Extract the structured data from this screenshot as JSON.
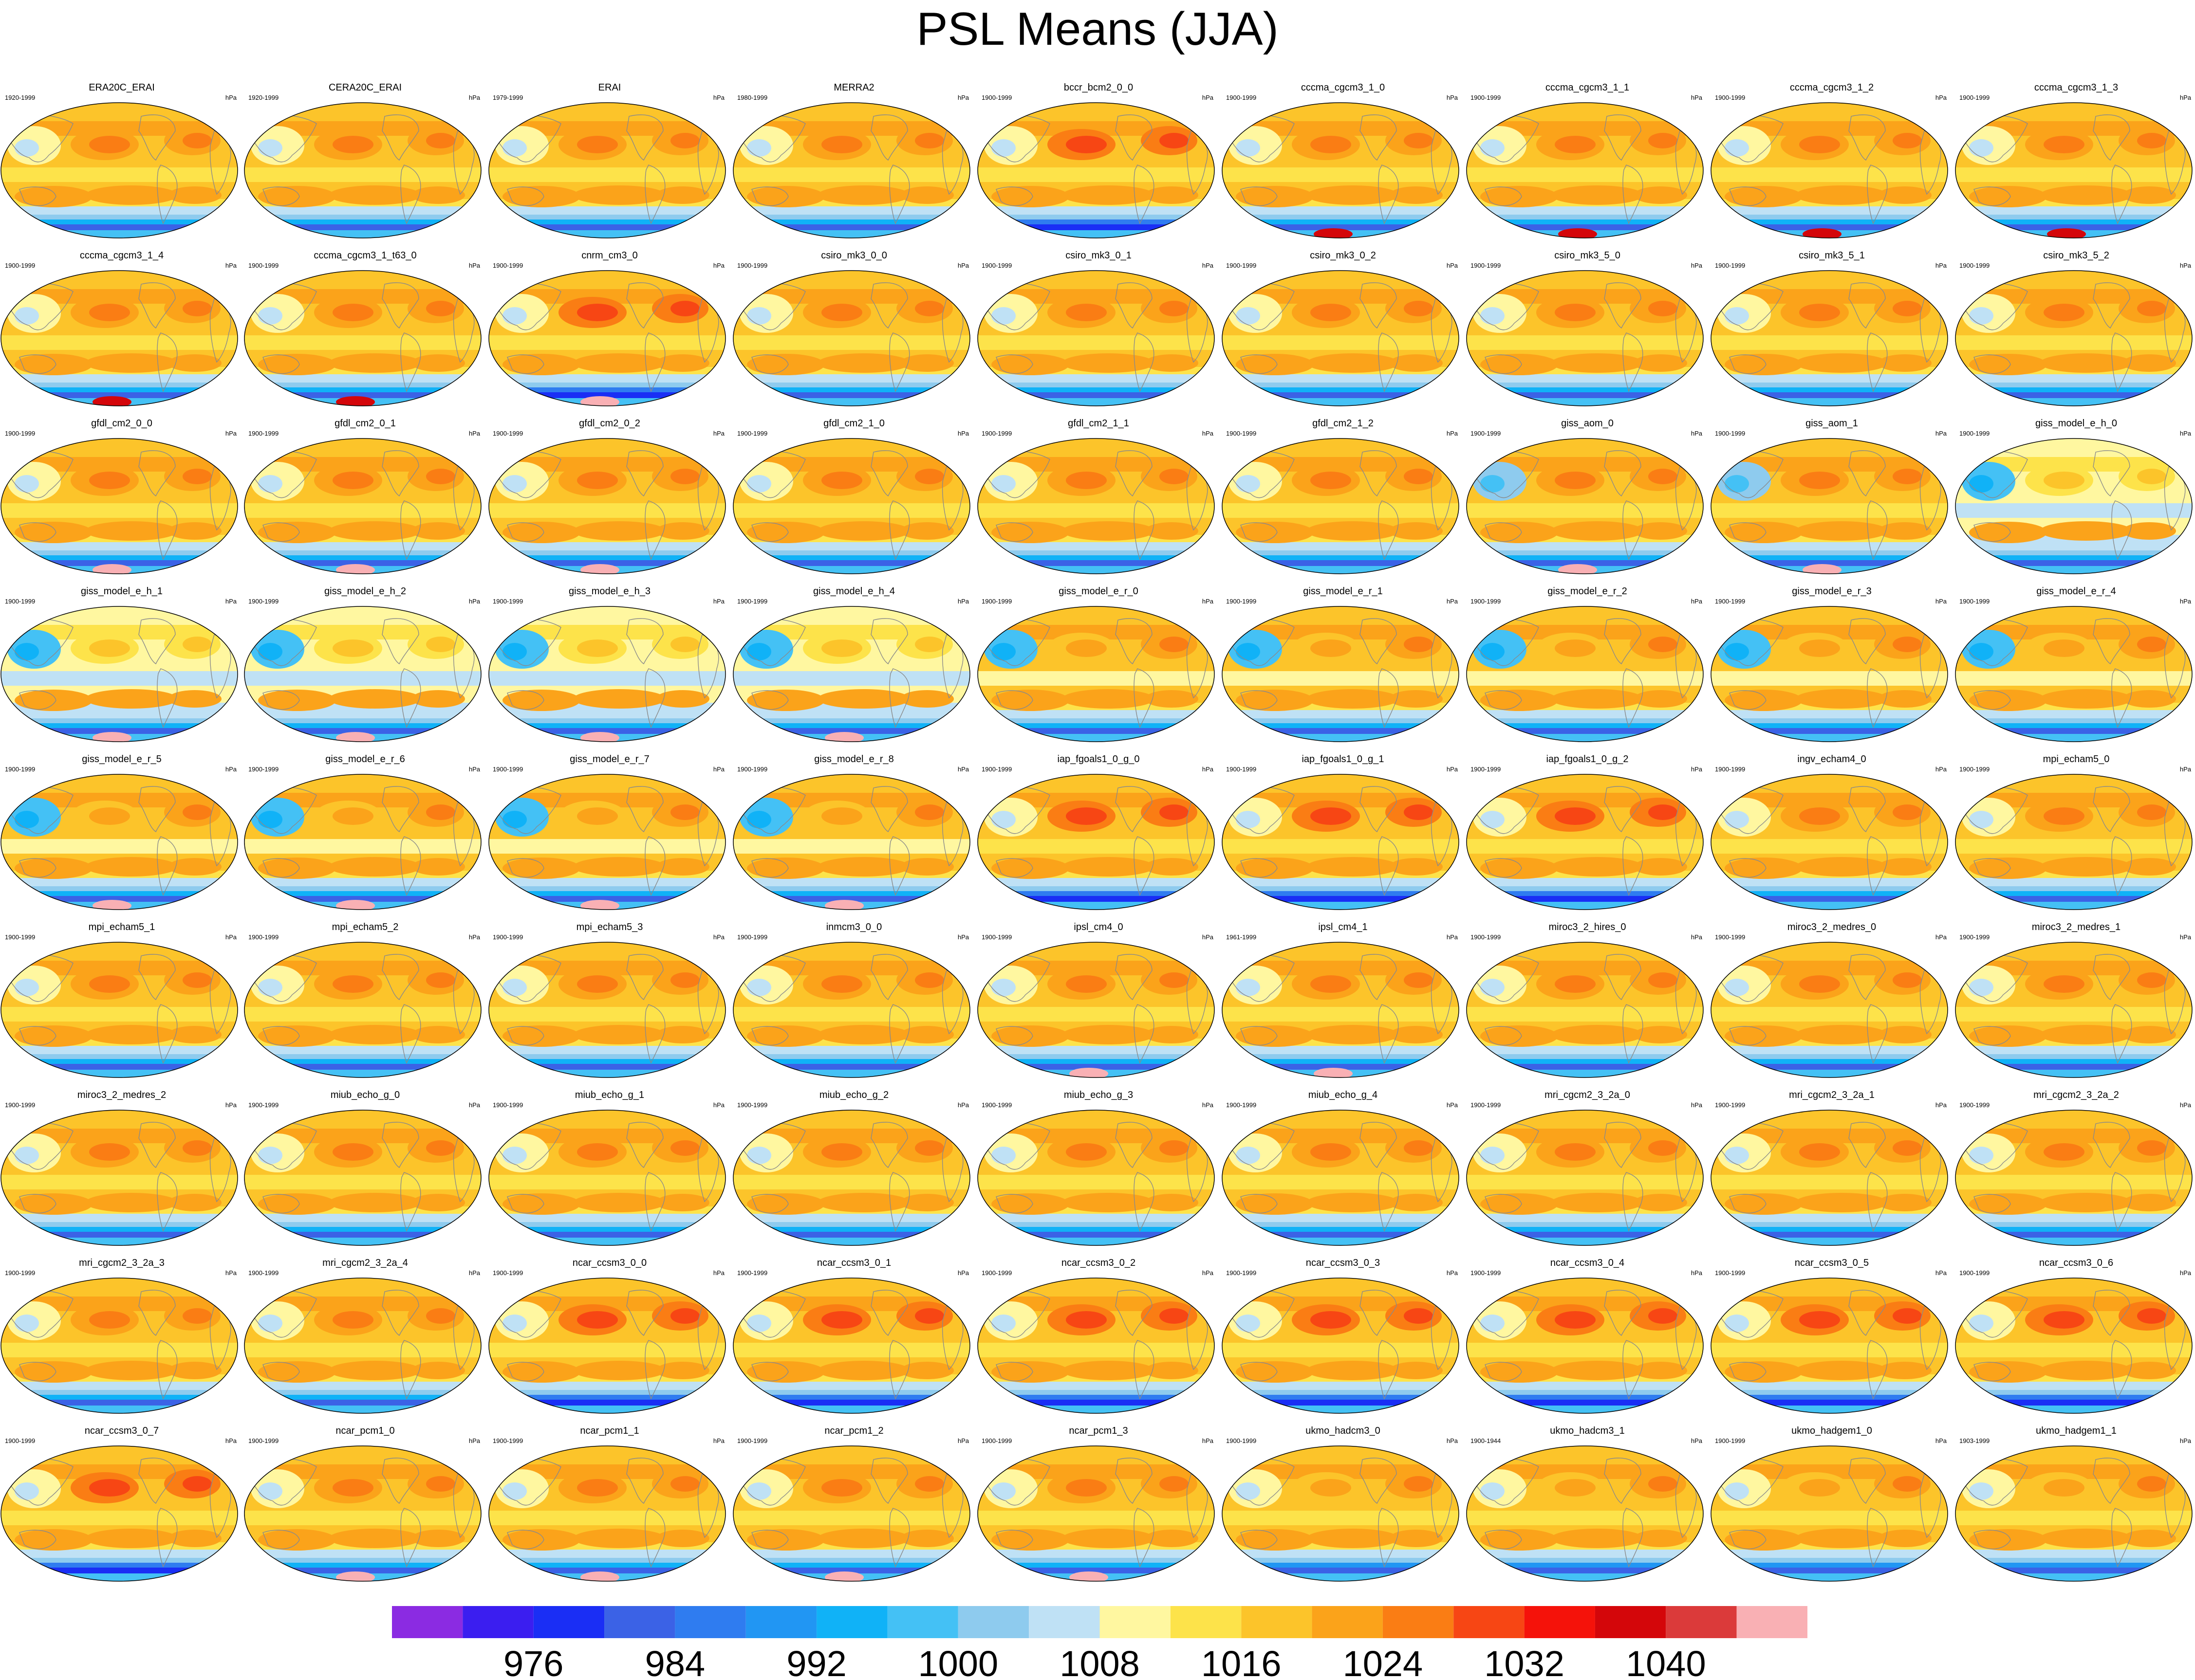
{
  "chart_data": {
    "type": "heatmap",
    "title": "PSL Means (JJA)",
    "units": "hPa",
    "panels": [
      {
        "name": "ERA20C_ERAI",
        "years": "1920-1999"
      },
      {
        "name": "CERA20C_ERAI",
        "years": "1920-1999"
      },
      {
        "name": "ERAI",
        "years": "1979-1999"
      },
      {
        "name": "MERRA2",
        "years": "1980-1999"
      },
      {
        "name": "bccr_bcm2_0_0",
        "years": "1900-1999"
      },
      {
        "name": "cccma_cgcm3_1_0",
        "years": "1900-1999"
      },
      {
        "name": "cccma_cgcm3_1_1",
        "years": "1900-1999"
      },
      {
        "name": "cccma_cgcm3_1_2",
        "years": "1900-1999"
      },
      {
        "name": "cccma_cgcm3_1_3",
        "years": "1900-1999"
      },
      {
        "name": "cccma_cgcm3_1_4",
        "years": "1900-1999"
      },
      {
        "name": "cccma_cgcm3_1_t63_0",
        "years": "1900-1999"
      },
      {
        "name": "cnrm_cm3_0",
        "years": "1900-1999"
      },
      {
        "name": "csiro_mk3_0_0",
        "years": "1900-1999"
      },
      {
        "name": "csiro_mk3_0_1",
        "years": "1900-1999"
      },
      {
        "name": "csiro_mk3_0_2",
        "years": "1900-1999"
      },
      {
        "name": "csiro_mk3_5_0",
        "years": "1900-1999"
      },
      {
        "name": "csiro_mk3_5_1",
        "years": "1900-1999"
      },
      {
        "name": "csiro_mk3_5_2",
        "years": "1900-1999"
      },
      {
        "name": "gfdl_cm2_0_0",
        "years": "1900-1999"
      },
      {
        "name": "gfdl_cm2_0_1",
        "years": "1900-1999"
      },
      {
        "name": "gfdl_cm2_0_2",
        "years": "1900-1999"
      },
      {
        "name": "gfdl_cm2_1_0",
        "years": "1900-1999"
      },
      {
        "name": "gfdl_cm2_1_1",
        "years": "1900-1999"
      },
      {
        "name": "gfdl_cm2_1_2",
        "years": "1900-1999"
      },
      {
        "name": "giss_aom_0",
        "years": "1900-1999"
      },
      {
        "name": "giss_aom_1",
        "years": "1900-1999"
      },
      {
        "name": "giss_model_e_h_0",
        "years": "1900-1999"
      },
      {
        "name": "giss_model_e_h_1",
        "years": "1900-1999"
      },
      {
        "name": "giss_model_e_h_2",
        "years": "1900-1999"
      },
      {
        "name": "giss_model_e_h_3",
        "years": "1900-1999"
      },
      {
        "name": "giss_model_e_h_4",
        "years": "1900-1999"
      },
      {
        "name": "giss_model_e_r_0",
        "years": "1900-1999"
      },
      {
        "name": "giss_model_e_r_1",
        "years": "1900-1999"
      },
      {
        "name": "giss_model_e_r_2",
        "years": "1900-1999"
      },
      {
        "name": "giss_model_e_r_3",
        "years": "1900-1999"
      },
      {
        "name": "giss_model_e_r_4",
        "years": "1900-1999"
      },
      {
        "name": "giss_model_e_r_5",
        "years": "1900-1999"
      },
      {
        "name": "giss_model_e_r_6",
        "years": "1900-1999"
      },
      {
        "name": "giss_model_e_r_7",
        "years": "1900-1999"
      },
      {
        "name": "giss_model_e_r_8",
        "years": "1900-1999"
      },
      {
        "name": "iap_fgoals1_0_g_0",
        "years": "1900-1999"
      },
      {
        "name": "iap_fgoals1_0_g_1",
        "years": "1900-1999"
      },
      {
        "name": "iap_fgoals1_0_g_2",
        "years": "1900-1999"
      },
      {
        "name": "ingv_echam4_0",
        "years": "1900-1999"
      },
      {
        "name": "mpi_echam5_0",
        "years": "1900-1999"
      },
      {
        "name": "mpi_echam5_1",
        "years": "1900-1999"
      },
      {
        "name": "mpi_echam5_2",
        "years": "1900-1999"
      },
      {
        "name": "mpi_echam5_3",
        "years": "1900-1999"
      },
      {
        "name": "inmcm3_0_0",
        "years": "1900-1999"
      },
      {
        "name": "ipsl_cm4_0",
        "years": "1900-1999"
      },
      {
        "name": "ipsl_cm4_1",
        "years": "1961-1999"
      },
      {
        "name": "miroc3_2_hires_0",
        "years": "1900-1999"
      },
      {
        "name": "miroc3_2_medres_0",
        "years": "1900-1999"
      },
      {
        "name": "miroc3_2_medres_1",
        "years": "1900-1999"
      },
      {
        "name": "miroc3_2_medres_2",
        "years": "1900-1999"
      },
      {
        "name": "miub_echo_g_0",
        "years": "1900-1999"
      },
      {
        "name": "miub_echo_g_1",
        "years": "1900-1999"
      },
      {
        "name": "miub_echo_g_2",
        "years": "1900-1999"
      },
      {
        "name": "miub_echo_g_3",
        "years": "1900-1999"
      },
      {
        "name": "miub_echo_g_4",
        "years": "1900-1999"
      },
      {
        "name": "mri_cgcm2_3_2a_0",
        "years": "1900-1999"
      },
      {
        "name": "mri_cgcm2_3_2a_1",
        "years": "1900-1999"
      },
      {
        "name": "mri_cgcm2_3_2a_2",
        "years": "1900-1999"
      },
      {
        "name": "mri_cgcm2_3_2a_3",
        "years": "1900-1999"
      },
      {
        "name": "mri_cgcm2_3_2a_4",
        "years": "1900-1999"
      },
      {
        "name": "ncar_ccsm3_0_0",
        "years": "1900-1999"
      },
      {
        "name": "ncar_ccsm3_0_1",
        "years": "1900-1999"
      },
      {
        "name": "ncar_ccsm3_0_2",
        "years": "1900-1999"
      },
      {
        "name": "ncar_ccsm3_0_3",
        "years": "1900-1999"
      },
      {
        "name": "ncar_ccsm3_0_4",
        "years": "1900-1999"
      },
      {
        "name": "ncar_ccsm3_0_5",
        "years": "1900-1999"
      },
      {
        "name": "ncar_ccsm3_0_6",
        "years": "1900-1999"
      },
      {
        "name": "ncar_ccsm3_0_7",
        "years": "1900-1999"
      },
      {
        "name": "ncar_pcm1_0",
        "years": "1900-1999"
      },
      {
        "name": "ncar_pcm1_1",
        "years": "1900-1999"
      },
      {
        "name": "ncar_pcm1_2",
        "years": "1900-1999"
      },
      {
        "name": "ncar_pcm1_3",
        "years": "1900-1999"
      },
      {
        "name": "ukmo_hadcm3_0",
        "years": "1900-1999"
      },
      {
        "name": "ukmo_hadcm3_1",
        "years": "1900-1944"
      },
      {
        "name": "ukmo_hadgem1_0",
        "years": "1900-1999"
      },
      {
        "name": "ukmo_hadgem1_1",
        "years": "1903-1999"
      }
    ],
    "colorbar": {
      "levels": [
        972,
        976,
        980,
        984,
        988,
        992,
        996,
        1000,
        1004,
        1008,
        1012,
        1016,
        1020,
        1024,
        1028,
        1032,
        1036,
        1040,
        1044
      ],
      "tick_labels": [
        "976",
        "984",
        "992",
        "1000",
        "1008",
        "1016",
        "1024",
        "1032",
        "1040"
      ],
      "colors": [
        "#8b2be2",
        "#3b1ef0",
        "#1a2ef5",
        "#3b62e6",
        "#2f7cf0",
        "#2196f3",
        "#10b2f7",
        "#44c1f5",
        "#8ecbee",
        "#bfe1f5",
        "#fff7a0",
        "#fde34a",
        "#fcc42a",
        "#fba31a",
        "#fa7d14",
        "#f74614",
        "#f5120a",
        "#d4060a",
        "#db3a3a",
        "#f9b0b4"
      ]
    }
  }
}
